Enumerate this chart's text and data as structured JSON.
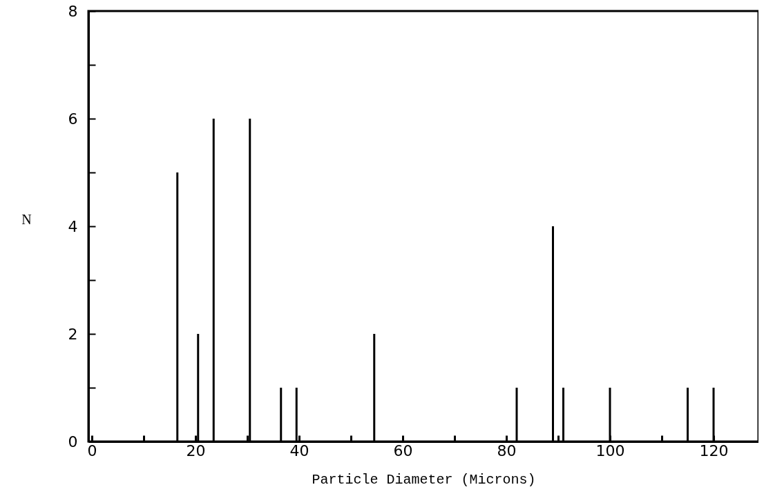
{
  "chart_data": {
    "type": "bar",
    "xlabel": "Particle Diameter (Microns)",
    "ylabel": "N",
    "x": [
      16.5,
      20.5,
      23.5,
      30.5,
      36.5,
      39.5,
      54.5,
      82,
      89,
      91,
      100,
      115,
      120
    ],
    "values": [
      5,
      2,
      6,
      6,
      1,
      1,
      2,
      1,
      4,
      1,
      1,
      1,
      1
    ],
    "color": "#000000",
    "xlim": [
      0,
      128
    ],
    "ylim": [
      0,
      8
    ],
    "xticks": [
      0,
      {
        "value": 10,
        "label": null
      },
      20,
      {
        "value": 30,
        "label": null
      },
      40,
      {
        "value": 50,
        "label": null
      },
      60,
      {
        "value": 70,
        "label": null
      },
      80,
      {
        "value": 90,
        "label": null
      },
      100,
      {
        "value": 110,
        "label": null
      },
      120
    ],
    "yticks": [
      0,
      {
        "value": 1,
        "label": null
      },
      2,
      {
        "value": 3,
        "label": null
      },
      4,
      {
        "value": 5,
        "label": null
      },
      6,
      {
        "value": 7,
        "label": null
      },
      8
    ],
    "grid": false
  }
}
